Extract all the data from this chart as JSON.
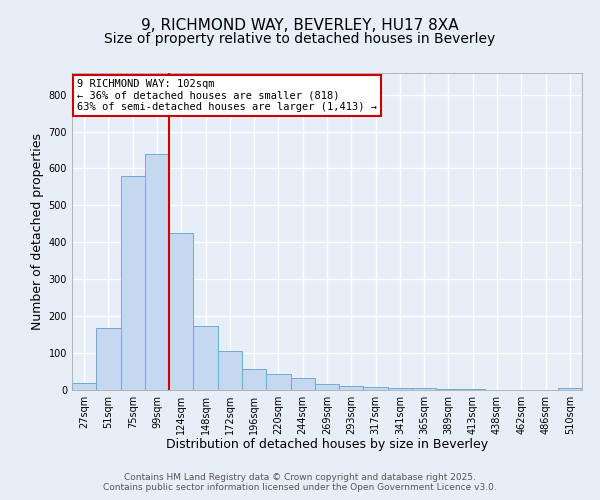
{
  "title1": "9, RICHMOND WAY, BEVERLEY, HU17 8XA",
  "title2": "Size of property relative to detached houses in Beverley",
  "xlabel": "Distribution of detached houses by size in Beverley",
  "ylabel": "Number of detached properties",
  "categories": [
    "27sqm",
    "51sqm",
    "75sqm",
    "99sqm",
    "124sqm",
    "148sqm",
    "172sqm",
    "196sqm",
    "220sqm",
    "244sqm",
    "269sqm",
    "293sqm",
    "317sqm",
    "341sqm",
    "365sqm",
    "389sqm",
    "413sqm",
    "438sqm",
    "462sqm",
    "486sqm",
    "510sqm"
  ],
  "values": [
    18,
    168,
    580,
    638,
    424,
    174,
    105,
    57,
    42,
    32,
    15,
    12,
    9,
    6,
    5,
    3,
    2,
    1,
    0,
    0,
    5
  ],
  "bar_color": "#c5d8f0",
  "bar_edge_color": "#6aacd8",
  "vline_x": 3.5,
  "vline_color": "#cc0000",
  "annotation_text": "9 RICHMOND WAY: 102sqm\n← 36% of detached houses are smaller (818)\n63% of semi-detached houses are larger (1,413) →",
  "annotation_box_color": "#ffffff",
  "annotation_box_edge_color": "#cc0000",
  "ylim": [
    0,
    860
  ],
  "yticks": [
    0,
    100,
    200,
    300,
    400,
    500,
    600,
    700,
    800
  ],
  "footer1": "Contains HM Land Registry data © Crown copyright and database right 2025.",
  "footer2": "Contains public sector information licensed under the Open Government Licence v3.0.",
  "background_color": "#e8eef8",
  "plot_background": "#e8eef8",
  "grid_color": "#ffffff",
  "title1_fontsize": 11,
  "title2_fontsize": 10,
  "label_fontsize": 9,
  "tick_fontsize": 7,
  "footer_fontsize": 6.5,
  "annot_fontsize": 7.5
}
